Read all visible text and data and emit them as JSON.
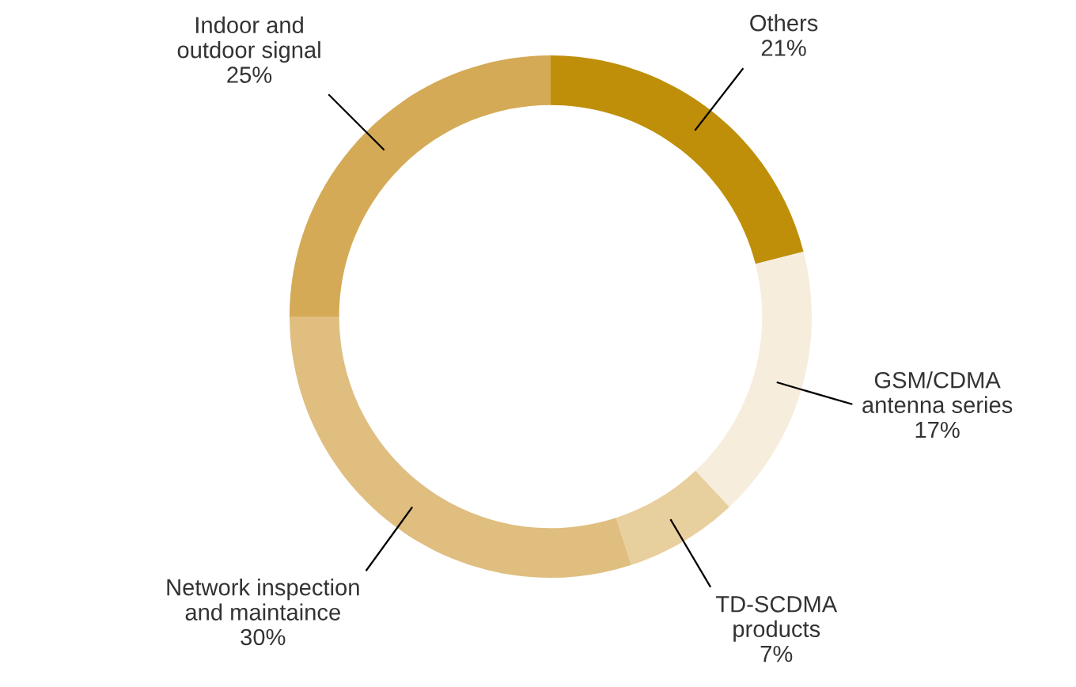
{
  "chart_data": {
    "type": "donut",
    "categories": [
      "Others",
      "GSM/CDMA\nantenna series",
      "TD-SCDMA\nproducts",
      "Network inspection\nand maintaince",
      "Indoor and\noutdoor signal"
    ],
    "values": [
      21,
      17,
      7,
      30,
      25
    ],
    "value_labels": [
      "21%",
      "17%",
      "7%",
      "30%",
      "25%"
    ],
    "colors": [
      "#bf8f0a",
      "#f6eddd",
      "#e8cf9e",
      "#dfbe80",
      "#d4aa56"
    ],
    "legend": false
  }
}
